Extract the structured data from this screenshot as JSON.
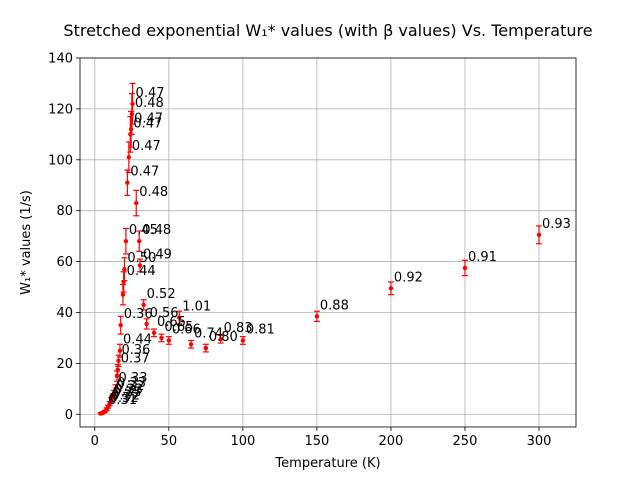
{
  "chart_data": {
    "type": "scatter",
    "title": "Stretched exponential W₁* values (with β values) Vs. Temperature",
    "xlabel": "Temperature (K)",
    "ylabel": "W₁* values (1/s)",
    "xlim": [
      -10,
      325
    ],
    "ylim": [
      -5,
      140
    ],
    "xticks": [
      0,
      50,
      100,
      150,
      200,
      250,
      300
    ],
    "yticks": [
      0,
      20,
      40,
      60,
      80,
      100,
      120,
      140
    ],
    "grid": true,
    "colors": {
      "points": "#ff0000",
      "labels": "#000000"
    },
    "points": [
      {
        "x": 4,
        "y": 0.3,
        "err": 0.3,
        "label": ""
      },
      {
        "x": 5,
        "y": 0.5,
        "err": 0.3,
        "label": ""
      },
      {
        "x": 6,
        "y": 0.8,
        "err": 0.3,
        "label": ""
      },
      {
        "x": 7,
        "y": 1.2,
        "err": 0.4,
        "label": "0.31"
      },
      {
        "x": 8,
        "y": 2.0,
        "err": 0.5,
        "label": "0.32"
      },
      {
        "x": 9,
        "y": 3.0,
        "err": 0.6,
        "label": "0.32"
      },
      {
        "x": 10,
        "y": 4.2,
        "err": 0.8,
        "label": "0.35"
      },
      {
        "x": 11,
        "y": 5.5,
        "err": 1.0,
        "label": "0.33"
      },
      {
        "x": 12,
        "y": 6.8,
        "err": 1.2,
        "label": "0.32"
      },
      {
        "x": 13,
        "y": 8.0,
        "err": 1.4,
        "label": "0.33"
      },
      {
        "x": 14,
        "y": 10.0,
        "err": 1.6,
        "label": "0.33"
      },
      {
        "x": 15,
        "y": 15.0,
        "err": 2.0,
        "label": ""
      },
      {
        "x": 15.5,
        "y": 17.5,
        "err": 2.0,
        "label": "0.37"
      },
      {
        "x": 16,
        "y": 21.0,
        "err": 2.2,
        "label": "0.36"
      },
      {
        "x": 17,
        "y": 25.0,
        "err": 2.5,
        "label": "0.44"
      },
      {
        "x": 17.5,
        "y": 35.0,
        "err": 3.5,
        "label": "0.36"
      },
      {
        "x": 19,
        "y": 47.0,
        "err": 4.0,
        "label": ""
      },
      {
        "x": 19.5,
        "y": 52.0,
        "err": 4.0,
        "label": "0.44"
      },
      {
        "x": 20,
        "y": 57.0,
        "err": 4.5,
        "label": "0.50"
      },
      {
        "x": 21,
        "y": 68.0,
        "err": 5.0,
        "label": "0.45"
      },
      {
        "x": 22,
        "y": 91.0,
        "err": 5.0,
        "label": "0.47"
      },
      {
        "x": 23,
        "y": 101.0,
        "err": 6.0,
        "label": "0.47"
      },
      {
        "x": 24,
        "y": 110.0,
        "err": 7.0,
        "label": "0.47"
      },
      {
        "x": 24.5,
        "y": 112.0,
        "err": 7.0,
        "label": "0.47"
      },
      {
        "x": 25,
        "y": 118.0,
        "err": 8.0,
        "label": "0.48"
      },
      {
        "x": 25.5,
        "y": 122.0,
        "err": 8.0,
        "label": "0.47"
      },
      {
        "x": 28,
        "y": 83.0,
        "err": 5.0,
        "label": "0.48"
      },
      {
        "x": 30,
        "y": 68.0,
        "err": 4.0,
        "label": "0.48"
      },
      {
        "x": 30.5,
        "y": 58.5,
        "err": 2.5,
        "label": "0.49"
      },
      {
        "x": 33,
        "y": 43.0,
        "err": 2.0,
        "label": "0.52"
      },
      {
        "x": 35,
        "y": 35.5,
        "err": 2.0,
        "label": "0.56"
      },
      {
        "x": 40,
        "y": 32.0,
        "err": 1.5,
        "label": "0.65"
      },
      {
        "x": 45,
        "y": 30.0,
        "err": 1.5,
        "label": "0.65"
      },
      {
        "x": 50,
        "y": 29.0,
        "err": 1.5,
        "label": "0.66"
      },
      {
        "x": 57,
        "y": 38.0,
        "err": 2.5,
        "label": "1.01"
      },
      {
        "x": 65,
        "y": 27.5,
        "err": 1.5,
        "label": "0.74"
      },
      {
        "x": 75,
        "y": 26.0,
        "err": 1.5,
        "label": "0.80"
      },
      {
        "x": 85,
        "y": 29.5,
        "err": 1.5,
        "label": "0.83"
      },
      {
        "x": 100,
        "y": 29.0,
        "err": 1.5,
        "label": "0.81"
      },
      {
        "x": 150,
        "y": 38.5,
        "err": 2.0,
        "label": "0.88"
      },
      {
        "x": 200,
        "y": 49.5,
        "err": 2.5,
        "label": "0.92"
      },
      {
        "x": 250,
        "y": 57.5,
        "err": 3.0,
        "label": "0.91"
      },
      {
        "x": 300,
        "y": 70.5,
        "err": 3.5,
        "label": "0.93"
      }
    ]
  }
}
